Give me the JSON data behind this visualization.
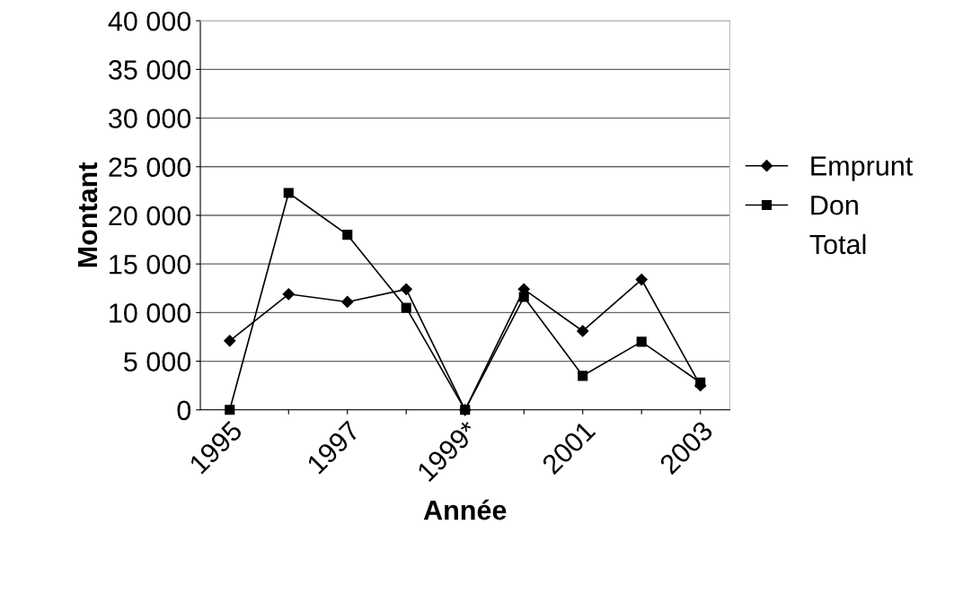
{
  "chart_data": {
    "type": "line",
    "xlabel": "Année",
    "ylabel": "Montant",
    "categories": [
      "1995",
      null,
      "1997",
      null,
      "1999*",
      null,
      "2001",
      null,
      "2003"
    ],
    "series": [
      {
        "name": "Emprunt",
        "color": "#000000",
        "marker": "diamond",
        "values": [
          7100,
          11900,
          11100,
          12400,
          0,
          12400,
          8100,
          13400,
          2500
        ]
      },
      {
        "name": "Don",
        "color": "#000000",
        "marker": "square",
        "values": [
          0,
          22300,
          18000,
          10500,
          0,
          11600,
          3500,
          7000,
          2800
        ]
      },
      {
        "name": "Total",
        "marker": "none",
        "values": [
          null,
          null,
          null,
          null,
          null,
          null,
          null,
          null,
          null
        ]
      }
    ],
    "ylim": [
      0,
      40000
    ],
    "yticks": [
      {
        "value": 0,
        "label": "0"
      },
      {
        "value": 5000,
        "label": "5 000"
      },
      {
        "value": 10000,
        "label": "10 000"
      },
      {
        "value": 15000,
        "label": "15 000"
      },
      {
        "value": 20000,
        "label": "20 000"
      },
      {
        "value": 25000,
        "label": "25 000"
      },
      {
        "value": 30000,
        "label": "30 000"
      },
      {
        "value": 35000,
        "label": "35 000"
      },
      {
        "value": 40000,
        "label": "40 000"
      }
    ],
    "grid": "y",
    "legend": "right"
  }
}
